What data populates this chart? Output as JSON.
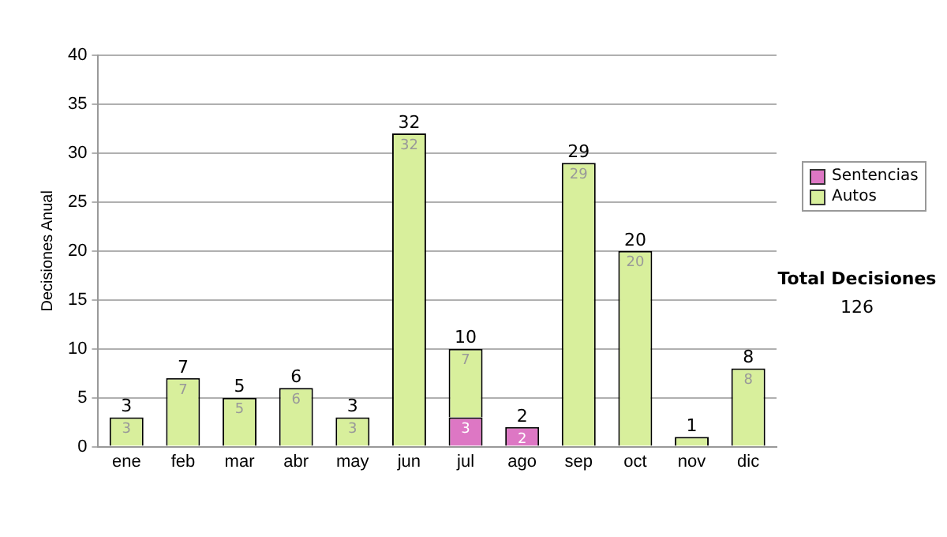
{
  "chart_data": {
    "type": "bar",
    "stacked": true,
    "ylabel": "Decisiones Anual",
    "categories": [
      "ene",
      "feb",
      "mar",
      "abr",
      "may",
      "jun",
      "jul",
      "ago",
      "sep",
      "oct",
      "nov",
      "dic"
    ],
    "series": [
      {
        "name": "Sentencias",
        "color": "#dd77c4",
        "values": [
          0,
          0,
          0,
          0,
          0,
          0,
          3,
          2,
          0,
          0,
          0,
          0
        ],
        "value_labels": [
          null,
          null,
          null,
          null,
          null,
          null,
          "3",
          "2",
          null,
          null,
          null,
          null
        ]
      },
      {
        "name": "Autos",
        "color": "#d8ef9c",
        "values": [
          3,
          7,
          5,
          6,
          3,
          32,
          7,
          0,
          29,
          20,
          1,
          8
        ],
        "value_labels": [
          "3",
          "7",
          "5",
          "6",
          "3",
          "32",
          "7",
          null,
          "29",
          "20",
          null,
          "8"
        ]
      }
    ],
    "totals": [
      "3",
      "7",
      "5",
      "6",
      "3",
      "32",
      "10",
      "2",
      "29",
      "20",
      "1",
      "8"
    ],
    "ylim": [
      0,
      40
    ],
    "yticks": [
      0,
      5,
      10,
      15,
      20,
      25,
      30,
      35,
      40
    ],
    "grid": "y",
    "legend": "right",
    "annotations": [
      "Total Decisiones",
      "126"
    ]
  }
}
